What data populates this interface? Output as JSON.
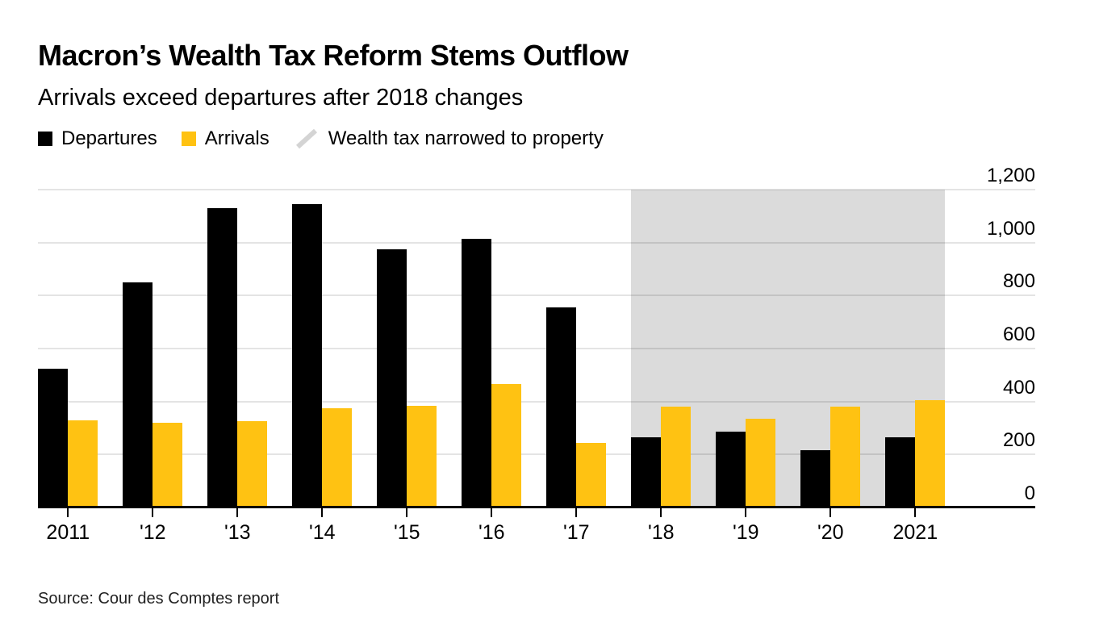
{
  "header": {
    "title": "Macron’s Wealth Tax Reform Stems Outflow",
    "subtitle": "Arrivals exceed departures after 2018 changes"
  },
  "legend": {
    "items": [
      {
        "label": "Departures",
        "swatch": "square",
        "color": "#000000"
      },
      {
        "label": "Arrivals",
        "swatch": "square",
        "color": "#FFC212"
      },
      {
        "label": "Wealth tax narrowed to property",
        "swatch": "slash",
        "color": "#D4D4D4"
      }
    ]
  },
  "chart_data": {
    "type": "bar",
    "title": "Macron’s Wealth Tax Reform Stems Outflow",
    "subtitle": "Arrivals exceed departures after 2018 changes",
    "categories": [
      "2011",
      "'12",
      "'13",
      "'14",
      "'15",
      "'16",
      "'17",
      "'18",
      "'19",
      "'20",
      "2021"
    ],
    "series": [
      {
        "name": "Departures",
        "color": "#000000",
        "values": [
          525,
          850,
          1130,
          1145,
          975,
          1015,
          755,
          265,
          285,
          215,
          265
        ]
      },
      {
        "name": "Arrivals",
        "color": "#FFC212",
        "values": [
          330,
          320,
          325,
          375,
          385,
          465,
          245,
          380,
          335,
          380,
          405
        ]
      }
    ],
    "xlabel": "",
    "ylabel": "",
    "ylim": [
      0,
      1200
    ],
    "yticks": [
      0,
      200,
      400,
      600,
      800,
      1000,
      1200
    ],
    "ytick_labels": [
      "0",
      "200",
      "400",
      "600",
      "800",
      "1,000",
      "1,200"
    ],
    "y_axis_side": "right",
    "grid": "horizontal",
    "legend_position": "top-left",
    "highlight_region": {
      "label": "Wealth tax narrowed to property",
      "from_category_index": 7,
      "to_category_index": 10,
      "color": "#DBDBDB"
    }
  },
  "source": {
    "text": "Source: Cour des Comptes report"
  },
  "colors": {
    "background": "#FFFFFF",
    "bar_departures": "#000000",
    "bar_arrivals": "#FFC212",
    "highlight_band": "#DBDBDB",
    "gridline": "#E4E4E4",
    "axis": "#000000",
    "slash_icon": "#D4D4D4"
  }
}
